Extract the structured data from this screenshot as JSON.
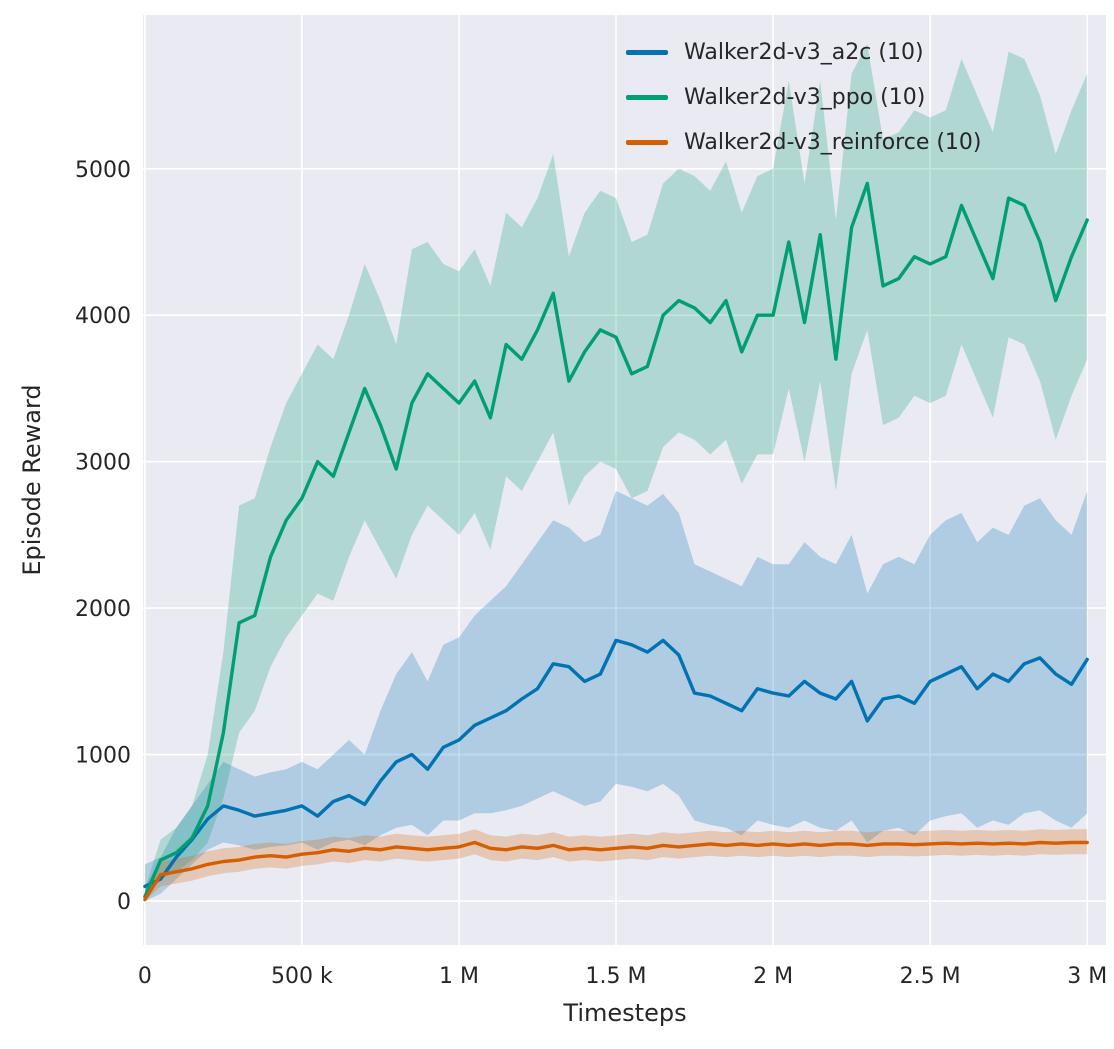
{
  "legend": {
    "entries": [
      {
        "id": "a2c",
        "label": "Walker2d-v3_a2c (10)",
        "color": "#0173b2"
      },
      {
        "id": "ppo",
        "label": "Walker2d-v3_ppo (10)",
        "color": "#029e73"
      },
      {
        "id": "reinforce",
        "label": "Walker2d-v3_reinforce (10)",
        "color": "#d55e00"
      }
    ],
    "position": "upper right inside axes"
  },
  "chart_data": {
    "type": "line",
    "title": "",
    "xlabel": "Timesteps",
    "ylabel": "Episode Reward",
    "xlim": [
      -6000,
      3060000
    ],
    "ylim": [
      -300,
      6050
    ],
    "grid": true,
    "background": "#eaeaf2",
    "grid_color": "#ffffff",
    "band_opacity": 0.25,
    "x_ticks": {
      "values": [
        0,
        500000,
        1000000,
        1500000,
        2000000,
        2500000,
        3000000
      ],
      "labels": [
        "0",
        "500 k",
        "1 M",
        "1.5 M",
        "2 M",
        "2.5 M",
        "3 M"
      ]
    },
    "y_ticks": {
      "values": [
        0,
        1000,
        2000,
        3000,
        4000,
        5000
      ],
      "labels": [
        "0",
        "1000",
        "2000",
        "3000",
        "4000",
        "5000"
      ]
    },
    "x": [
      0,
      50000,
      100000,
      150000,
      200000,
      250000,
      300000,
      350000,
      400000,
      450000,
      500000,
      550000,
      600000,
      650000,
      700000,
      750000,
      800000,
      850000,
      900000,
      950000,
      1000000,
      1050000,
      1100000,
      1150000,
      1200000,
      1250000,
      1300000,
      1350000,
      1400000,
      1450000,
      1500000,
      1550000,
      1600000,
      1650000,
      1700000,
      1750000,
      1800000,
      1850000,
      1900000,
      1950000,
      2000000,
      2050000,
      2100000,
      2150000,
      2200000,
      2250000,
      2300000,
      2350000,
      2400000,
      2450000,
      2500000,
      2550000,
      2600000,
      2650000,
      2700000,
      2750000,
      2800000,
      2850000,
      2900000,
      2950000,
      3000000
    ],
    "series": [
      {
        "id": "a2c",
        "name": "Walker2d-v3_a2c (10)",
        "color": "#0173b2",
        "mean": [
          100,
          150,
          300,
          420,
          560,
          650,
          620,
          580,
          600,
          620,
          650,
          580,
          680,
          720,
          660,
          820,
          950,
          1000,
          900,
          1050,
          1100,
          1200,
          1250,
          1300,
          1380,
          1450,
          1620,
          1600,
          1500,
          1550,
          1780,
          1750,
          1700,
          1780,
          1680,
          1420,
          1400,
          1350,
          1300,
          1450,
          1420,
          1400,
          1500,
          1420,
          1380,
          1500,
          1230,
          1380,
          1400,
          1350,
          1500,
          1550,
          1600,
          1450,
          1550,
          1500,
          1620,
          1660,
          1550,
          1480,
          1650
        ],
        "lower": [
          0,
          50,
          150,
          250,
          350,
          400,
          380,
          350,
          370,
          380,
          400,
          350,
          400,
          420,
          380,
          450,
          500,
          520,
          450,
          550,
          550,
          600,
          600,
          620,
          650,
          700,
          750,
          700,
          650,
          680,
          800,
          780,
          750,
          800,
          720,
          550,
          520,
          500,
          450,
          550,
          520,
          500,
          550,
          500,
          480,
          550,
          400,
          480,
          500,
          450,
          550,
          580,
          600,
          500,
          550,
          520,
          600,
          620,
          550,
          500,
          600
        ],
        "upper": [
          250,
          300,
          500,
          650,
          800,
          950,
          900,
          850,
          880,
          900,
          950,
          900,
          1000,
          1100,
          1000,
          1300,
          1550,
          1700,
          1500,
          1750,
          1800,
          1950,
          2050,
          2150,
          2300,
          2450,
          2600,
          2550,
          2450,
          2500,
          2800,
          2750,
          2700,
          2780,
          2650,
          2300,
          2250,
          2200,
          2150,
          2350,
          2300,
          2300,
          2450,
          2350,
          2300,
          2500,
          2100,
          2300,
          2350,
          2300,
          2500,
          2600,
          2650,
          2450,
          2550,
          2500,
          2700,
          2750,
          2600,
          2500,
          2800
        ]
      },
      {
        "id": "ppo",
        "name": "Walker2d-v3_ppo (10)",
        "color": "#029e73",
        "mean": [
          30,
          280,
          330,
          430,
          650,
          1150,
          1900,
          1950,
          2350,
          2600,
          2750,
          3000,
          2900,
          3200,
          3500,
          3250,
          2950,
          3400,
          3600,
          3500,
          3400,
          3550,
          3300,
          3800,
          3700,
          3900,
          4150,
          3550,
          3750,
          3900,
          3850,
          3600,
          3650,
          4000,
          4100,
          4050,
          3950,
          4100,
          3750,
          4000,
          4000,
          4500,
          3950,
          4550,
          3700,
          4600,
          4900,
          4200,
          4250,
          4400,
          4350,
          4400,
          4750,
          4500,
          4250,
          4800,
          4750,
          4500,
          4100,
          4400,
          4650
        ],
        "lower": [
          0,
          150,
          200,
          280,
          400,
          700,
          1150,
          1300,
          1600,
          1800,
          1950,
          2100,
          2050,
          2350,
          2600,
          2400,
          2200,
          2500,
          2700,
          2600,
          2500,
          2650,
          2400,
          2900,
          2800,
          3000,
          3200,
          2700,
          2900,
          3000,
          2950,
          2750,
          2800,
          3100,
          3200,
          3150,
          3050,
          3150,
          2850,
          3050,
          3050,
          3500,
          3000,
          3550,
          2800,
          3600,
          3900,
          3250,
          3300,
          3450,
          3400,
          3450,
          3800,
          3550,
          3300,
          3850,
          3800,
          3550,
          3150,
          3450,
          3700
        ],
        "upper": [
          80,
          420,
          500,
          650,
          1000,
          1700,
          2700,
          2750,
          3100,
          3400,
          3600,
          3800,
          3700,
          4000,
          4350,
          4100,
          3800,
          4450,
          4500,
          4350,
          4300,
          4450,
          4200,
          4700,
          4600,
          4800,
          5100,
          4400,
          4700,
          4850,
          4800,
          4500,
          4550,
          4900,
          5000,
          4950,
          4850,
          5050,
          4700,
          4950,
          5000,
          5600,
          4900,
          5600,
          4650,
          5650,
          5850,
          5200,
          5250,
          5400,
          5350,
          5400,
          5750,
          5500,
          5250,
          5800,
          5750,
          5500,
          5100,
          5400,
          5650
        ]
      },
      {
        "id": "reinforce",
        "name": "Walker2d-v3_reinforce (10)",
        "color": "#d55e00",
        "mean": [
          10,
          180,
          200,
          220,
          250,
          270,
          280,
          300,
          310,
          300,
          320,
          330,
          350,
          340,
          360,
          350,
          370,
          360,
          350,
          360,
          370,
          400,
          360,
          350,
          370,
          360,
          380,
          350,
          360,
          350,
          360,
          370,
          360,
          380,
          370,
          380,
          390,
          380,
          390,
          380,
          390,
          380,
          390,
          380,
          390,
          390,
          380,
          390,
          390,
          385,
          390,
          395,
          390,
          395,
          390,
          395,
          390,
          400,
          395,
          400,
          400
        ],
        "lower": [
          0,
          100,
          120,
          140,
          170,
          190,
          200,
          220,
          230,
          220,
          240,
          250,
          270,
          260,
          280,
          270,
          290,
          280,
          270,
          280,
          290,
          320,
          280,
          270,
          290,
          280,
          300,
          270,
          280,
          270,
          280,
          290,
          280,
          300,
          290,
          300,
          310,
          300,
          310,
          300,
          310,
          300,
          310,
          300,
          310,
          310,
          300,
          310,
          310,
          305,
          310,
          315,
          310,
          315,
          310,
          315,
          310,
          320,
          315,
          320,
          320
        ],
        "upper": [
          100,
          270,
          290,
          310,
          340,
          360,
          370,
          390,
          400,
          390,
          410,
          420,
          440,
          430,
          450,
          440,
          460,
          450,
          440,
          450,
          460,
          490,
          450,
          440,
          460,
          450,
          470,
          440,
          450,
          440,
          450,
          460,
          450,
          470,
          460,
          470,
          480,
          470,
          480,
          470,
          480,
          470,
          480,
          470,
          480,
          480,
          470,
          480,
          480,
          475,
          480,
          485,
          480,
          485,
          480,
          485,
          480,
          490,
          485,
          490,
          490
        ]
      }
    ],
    "text_color": "#262626"
  }
}
